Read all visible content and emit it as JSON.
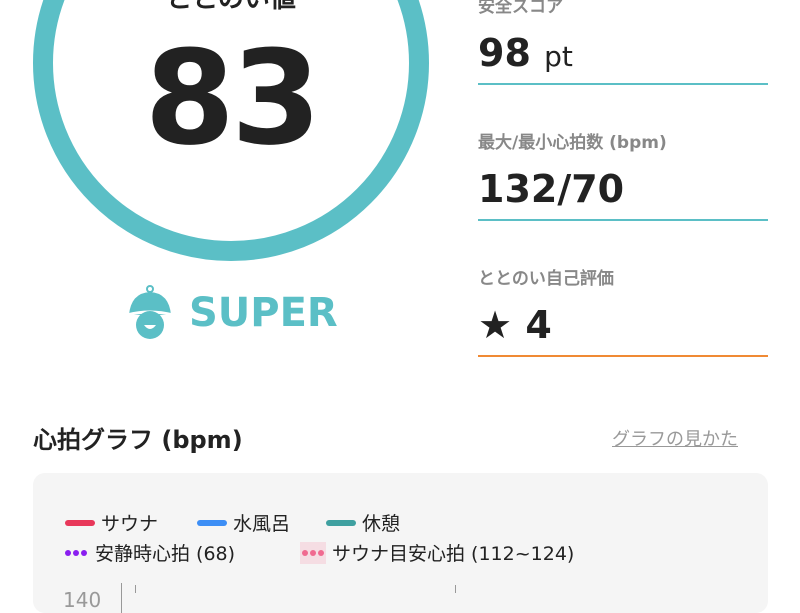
{
  "score": {
    "label": "ととのい値",
    "value": "83",
    "rank": "SUPER",
    "rank_icon": "sauna-hat-icon",
    "color": "#5bbfc6"
  },
  "stats": [
    {
      "label": "安全スコア",
      "value": "98",
      "unit": "pt",
      "line_color": "#5bbfc6"
    },
    {
      "label": "最大/最小心拍数 (bpm)",
      "value": "132/70",
      "line_color": "#5bbfc6"
    },
    {
      "label": "ととのい自己評価",
      "value": "4",
      "icon": "star-icon",
      "line_color": "#f08a34"
    }
  ],
  "graph": {
    "title": "心拍グラフ (bpm)",
    "guide_link": "グラフの見かた",
    "legend": [
      {
        "label": "サウナ",
        "color": "#e8385a"
      },
      {
        "label": "水風呂",
        "color": "#3d8ef5"
      },
      {
        "label": "休憩",
        "color": "#3fa0a0"
      },
      {
        "label": "安静時心拍 (68)",
        "color": "#8a1ef0"
      },
      {
        "label": "サウナ目安心拍 (112~124)",
        "color": "#f06a90"
      }
    ],
    "y_tick_top": "140"
  }
}
